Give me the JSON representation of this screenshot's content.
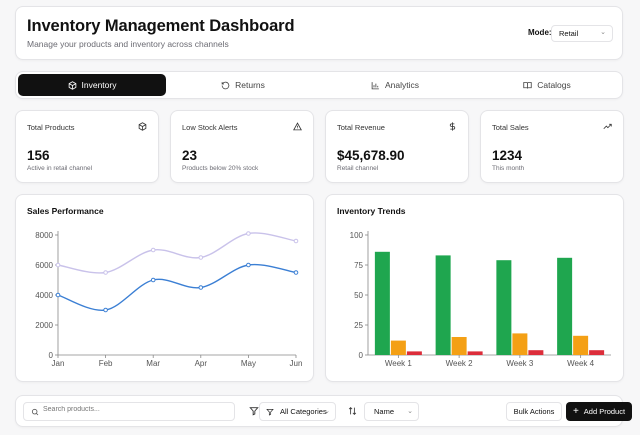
{
  "header": {
    "title": "Inventory Management Dashboard",
    "subtitle": "Manage your products and inventory across channels",
    "mode_label": "Mode:",
    "mode_value": "Retail"
  },
  "tabs": [
    {
      "label": "Inventory",
      "icon": "box-icon",
      "active": true
    },
    {
      "label": "Returns",
      "icon": "rotate-ccw-icon",
      "active": false
    },
    {
      "label": "Analytics",
      "icon": "bar-chart-icon",
      "active": false
    },
    {
      "label": "Catalogs",
      "icon": "book-open-icon",
      "active": false
    }
  ],
  "stats": [
    {
      "label": "Total Products",
      "value": "156",
      "desc": "Active in retail channel",
      "icon": "box-icon"
    },
    {
      "label": "Low Stock Alerts",
      "value": "23",
      "desc": "Products below 20% stock",
      "icon": "alert-triangle-icon"
    },
    {
      "label": "Total Revenue",
      "value": "$45,678.90",
      "desc": "Retail channel",
      "icon": "dollar-icon"
    },
    {
      "label": "Total Sales",
      "value": "1234",
      "desc": "This month",
      "icon": "trending-up-icon"
    }
  ],
  "sales_chart": {
    "title": "Sales Performance"
  },
  "trends_chart": {
    "title": "Inventory Trends"
  },
  "chart_data": [
    {
      "type": "line",
      "title": "Sales Performance",
      "x": [
        "Jan",
        "Feb",
        "Mar",
        "Apr",
        "May",
        "Jun"
      ],
      "ylim": [
        0,
        8000
      ],
      "yticks": [
        0,
        2000,
        4000,
        6000,
        8000
      ],
      "grid": false,
      "series": [
        {
          "values": [
            4000,
            3000,
            5000,
            4500,
            6000,
            5500
          ],
          "color": "#3b7fd4"
        },
        {
          "values": [
            6000,
            5500,
            7000,
            6500,
            8100,
            7600
          ],
          "color": "#c9c2ea"
        }
      ]
    },
    {
      "type": "bar",
      "title": "Inventory Trends",
      "categories": [
        "Week 1",
        "Week 2",
        "Week 3",
        "Week 4"
      ],
      "ylim": [
        0,
        100
      ],
      "yticks": [
        0,
        25,
        50,
        75,
        100
      ],
      "grid": false,
      "series": [
        {
          "values": [
            86,
            83,
            79,
            81
          ],
          "color": "#1fa64f"
        },
        {
          "values": [
            12,
            15,
            18,
            16
          ],
          "color": "#f4a015"
        },
        {
          "values": [
            3,
            3,
            4,
            4
          ],
          "color": "#dc2d3a"
        }
      ]
    }
  ],
  "toolbar": {
    "search_placeholder": "Search products...",
    "category_value": "All Categories",
    "sort_value": "Name",
    "bulk_label": "Bulk Actions",
    "add_label": "Add Product"
  },
  "colors": {
    "accent": "#111111",
    "line_primary": "#3b7fd4",
    "line_secondary": "#c9c2ea",
    "bar_green": "#1fa64f",
    "bar_orange": "#f4a015",
    "bar_red": "#dc2d3a"
  }
}
